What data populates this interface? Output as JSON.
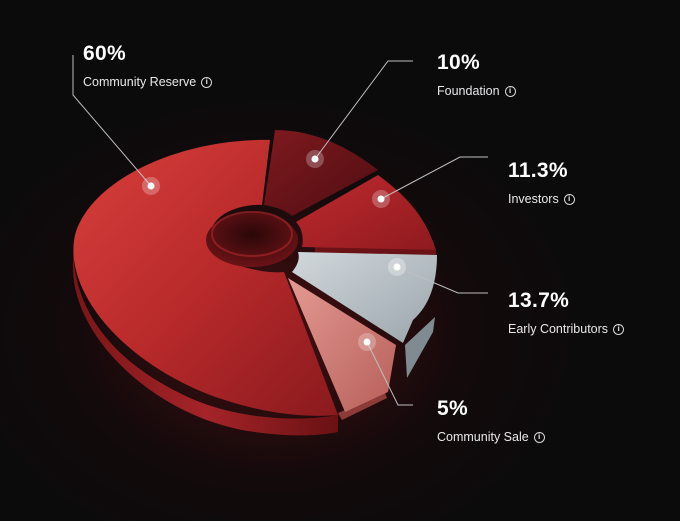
{
  "chart_data": {
    "type": "pie",
    "title": "",
    "slices": [
      {
        "label": "Community Reserve",
        "percent_text": "60%",
        "value": 60,
        "color": "#c9302f",
        "info_icon": "info-icon"
      },
      {
        "label": "Foundation",
        "percent_text": "10%",
        "value": 10,
        "color": "#8e1b22",
        "info_icon": "info-icon"
      },
      {
        "label": "Investors",
        "percent_text": "11.3%",
        "value": 11.3,
        "color": "#b3232a",
        "info_icon": "info-icon"
      },
      {
        "label": "Early Contributors",
        "percent_text": "13.7%",
        "value": 13.7,
        "color": "#b9c2c8",
        "info_icon": "info-icon"
      },
      {
        "label": "Community Sale",
        "percent_text": "5%",
        "value": 5,
        "color": "#d98a84",
        "info_icon": "info-icon"
      }
    ]
  }
}
